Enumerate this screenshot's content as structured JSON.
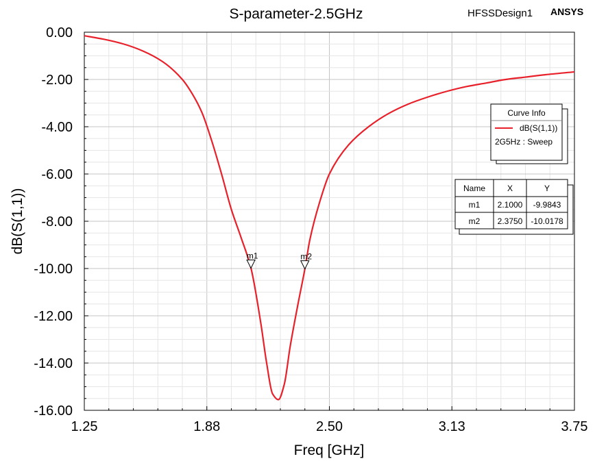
{
  "header": {
    "title": "S-parameter-2.5GHz",
    "design_name": "HFSSDesign1",
    "brand": "ANSYS"
  },
  "chart_data": {
    "type": "line",
    "title": "S-parameter-2.5GHz",
    "xlabel": "Freq [GHz]",
    "ylabel": "dB(S(1,1))",
    "xlim": [
      1.25,
      3.75
    ],
    "ylim": [
      -16,
      0
    ],
    "x_tick_labels": [
      "1.25",
      "1.88",
      "2.50",
      "3.13",
      "3.75"
    ],
    "x_ticks": [
      1.25,
      1.875,
      2.5,
      3.125,
      3.75
    ],
    "y_tick_labels": [
      "0.00",
      "-2.00",
      "-4.00",
      "-6.00",
      "-8.00",
      "-10.00",
      "-12.00",
      "-14.00",
      "-16.00"
    ],
    "y_ticks": [
      0,
      -2,
      -4,
      -6,
      -8,
      -10,
      -12,
      -14,
      -16
    ],
    "grid": true,
    "series": [
      {
        "name": "dB(S(1,1))",
        "color": "#e8202a",
        "x": [
          1.25,
          1.35,
          1.45,
          1.55,
          1.65,
          1.75,
          1.8,
          1.85,
          1.9,
          1.95,
          2.0,
          2.05,
          2.1,
          2.15,
          2.18,
          2.21,
          2.24,
          2.27,
          2.3,
          2.34,
          2.375,
          2.4,
          2.45,
          2.5,
          2.6,
          2.7,
          2.8,
          2.9,
          3.0,
          3.1,
          3.2,
          3.3,
          3.4,
          3.5,
          3.6,
          3.75
        ],
        "y": [
          -0.15,
          -0.3,
          -0.5,
          -0.8,
          -1.25,
          -2.0,
          -2.6,
          -3.4,
          -4.6,
          -6.0,
          -7.5,
          -8.7,
          -9.98,
          -12.3,
          -14.0,
          -15.3,
          -15.55,
          -14.9,
          -13.3,
          -11.5,
          -10.02,
          -8.8,
          -7.2,
          -6.0,
          -4.75,
          -4.0,
          -3.45,
          -3.05,
          -2.75,
          -2.5,
          -2.3,
          -2.15,
          -2.0,
          -1.9,
          -1.8,
          -1.68
        ]
      }
    ],
    "markers": [
      {
        "name": "m1",
        "x": 2.1,
        "y": -9.9843
      },
      {
        "name": "m2",
        "x": 2.375,
        "y": -10.0178
      }
    ]
  },
  "legend": {
    "title": "Curve Info",
    "entry": "dB(S(1,1))",
    "subtitle": "2G5Hz : Sweep",
    "placement": "right"
  },
  "marker_table": {
    "headers": [
      "Name",
      "X",
      "Y"
    ],
    "rows": [
      [
        "m1",
        "2.1000",
        "-9.9843"
      ],
      [
        "m2",
        "2.3750",
        "-10.0178"
      ]
    ]
  }
}
